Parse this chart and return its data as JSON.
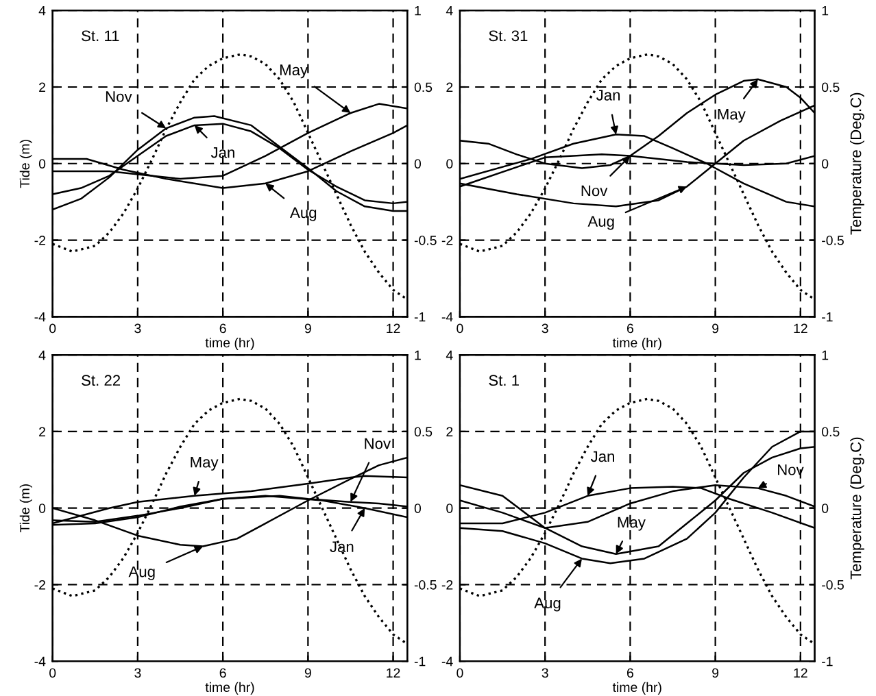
{
  "chart_data": [
    {
      "type": "line",
      "xlabel": "time (hr)",
      "ylabel": "Tide (m)",
      "xlim": [
        0,
        12.5
      ],
      "xticks": [
        0,
        3,
        6,
        9,
        12
      ],
      "ylim": [
        -4,
        4
      ],
      "yticks": [
        -4,
        -2,
        0,
        2,
        4
      ],
      "y2lim": [
        -1,
        1
      ],
      "y2ticks": [
        -1,
        -0.5,
        0,
        0.5,
        1
      ],
      "grid": true,
      "annotations": [
        "St. 11",
        {
          "text": "Nov",
          "x": 4,
          "y": 0.92
        },
        {
          "text": "Jan",
          "x": 5,
          "y": 1.0
        },
        {
          "text": "May",
          "x": 10.5,
          "y": 1.32
        },
        {
          "text": "Aug",
          "x": 7.5,
          "y": -0.52
        }
      ],
      "series": [
        {
          "color": "#000000",
          "line_style": "dotted",
          "x": [
            0,
            0.7,
            1.5,
            2,
            2.5,
            3,
            3.5,
            4,
            4.5,
            5,
            5.5,
            6,
            6.6,
            7,
            7.5,
            8,
            8.5,
            9,
            9.5,
            10,
            10.5,
            11,
            11.5,
            12,
            12.5
          ],
          "values": [
            -2.1,
            -2.3,
            -2.15,
            -1.8,
            -1.3,
            -0.65,
            0.1,
            0.9,
            1.6,
            2.2,
            2.55,
            2.75,
            2.85,
            2.8,
            2.6,
            2.2,
            1.6,
            0.8,
            0,
            -0.8,
            -1.6,
            -2.3,
            -2.85,
            -3.3,
            -3.55
          ]
        },
        {
          "color": "#000000",
          "line_style": "solid",
          "axis": "y2",
          "x": [
            0,
            1,
            2,
            3,
            4,
            5,
            6,
            7,
            8,
            9,
            10,
            11,
            12,
            12.5
          ],
          "values": [
            -0.2,
            -0.16,
            -0.08,
            0.05,
            0.18,
            0.25,
            0.26,
            0.21,
            0.1,
            -0.04,
            -0.15,
            -0.24,
            -0.26,
            -0.25
          ]
        },
        {
          "color": "#000000",
          "line_style": "solid",
          "axis": "y2",
          "x": [
            0,
            2,
            3,
            4.5,
            6,
            7.5,
            9,
            10.5,
            11.5,
            12.5
          ],
          "values": [
            -0.05,
            -0.05,
            -0.07,
            -0.1,
            -0.08,
            0.05,
            0.2,
            0.33,
            0.39,
            0.36
          ]
        },
        {
          "color": "#000000",
          "line_style": "solid",
          "axis": "y2",
          "x": [
            0,
            1.2,
            2.5,
            4,
            6,
            7.5,
            9,
            10.5,
            12,
            12.5
          ],
          "values": [
            0.03,
            0.03,
            -0.04,
            -0.1,
            -0.16,
            -0.13,
            -0.05,
            0.08,
            0.2,
            0.25
          ]
        },
        {
          "color": "#000000",
          "line_style": "solid",
          "axis": "y2",
          "x": [
            0,
            1,
            2,
            3,
            4,
            5,
            5.7,
            7,
            8,
            9,
            10,
            11,
            12,
            12.5
          ],
          "values": [
            -0.3,
            -0.23,
            -0.09,
            0.09,
            0.23,
            0.3,
            0.31,
            0.25,
            0.11,
            -0.03,
            -0.18,
            -0.28,
            -0.31,
            -0.31
          ]
        }
      ]
    },
    {
      "type": "line",
      "xlabel": "time (hr)",
      "y2label": "Temperature (Deg.C)",
      "xlim": [
        0,
        12.5
      ],
      "xticks": [
        0,
        3,
        6,
        9,
        12
      ],
      "ylim": [
        -4,
        4
      ],
      "yticks": [
        -4,
        -2,
        0,
        2,
        4
      ],
      "y2lim": [
        -1,
        1
      ],
      "y2ticks": [
        -1,
        -0.5,
        0,
        0.5,
        1
      ],
      "grid": true,
      "annotations": [
        "St. 31",
        {
          "text": "Jan",
          "x": 5.5,
          "y": 0.76
        },
        {
          "text": "May",
          "x": 10.5,
          "y": 2.2
        },
        {
          "text": "Nov",
          "x": 6,
          "y": 0.2
        },
        {
          "text": "Aug",
          "x": 8,
          "y": -0.6
        }
      ],
      "series": [
        {
          "color": "#000000",
          "line_style": "dotted",
          "x": [
            0,
            0.7,
            1.5,
            2,
            2.5,
            3,
            3.5,
            4,
            4.5,
            5,
            5.5,
            6,
            6.6,
            7,
            7.5,
            8,
            8.5,
            9,
            9.5,
            10,
            10.5,
            11,
            11.5,
            12,
            12.5
          ],
          "values": [
            -2.1,
            -2.3,
            -2.15,
            -1.8,
            -1.3,
            -0.65,
            0.1,
            0.9,
            1.6,
            2.2,
            2.55,
            2.75,
            2.85,
            2.8,
            2.6,
            2.2,
            1.6,
            0.8,
            0,
            -0.8,
            -1.6,
            -2.3,
            -2.85,
            -3.3,
            -3.55
          ]
        },
        {
          "color": "#000000",
          "line_style": "solid",
          "axis": "y2",
          "x": [
            0,
            2.5,
            4,
            5.5,
            6.5,
            7.5,
            8.7,
            10,
            11.5,
            12.5
          ],
          "values": [
            -0.1,
            0.03,
            0.13,
            0.19,
            0.18,
            0.1,
            0,
            -0.13,
            -0.25,
            -0.28
          ]
        },
        {
          "color": "#000000",
          "line_style": "solid",
          "axis": "y2",
          "x": [
            0,
            1,
            2,
            3,
            4.3,
            5.3,
            6,
            7,
            8,
            9,
            10,
            10.5,
            11.5,
            12,
            12.5
          ],
          "values": [
            0.15,
            0.13,
            0.06,
            0,
            -0.03,
            -0.01,
            0.05,
            0.18,
            0.33,
            0.45,
            0.54,
            0.55,
            0.5,
            0.43,
            0.33
          ]
        },
        {
          "color": "#000000",
          "line_style": "solid",
          "axis": "y2",
          "x": [
            0,
            3,
            5,
            6,
            8,
            10,
            11.5,
            12.5
          ],
          "values": [
            -0.15,
            0.04,
            0.06,
            0.05,
            0.01,
            -0.01,
            0,
            0.05
          ]
        },
        {
          "color": "#000000",
          "line_style": "solid",
          "axis": "y2",
          "x": [
            0,
            2,
            4,
            5.5,
            7,
            8,
            9,
            10,
            11.3,
            12.5
          ],
          "values": [
            -0.13,
            -0.2,
            -0.26,
            -0.28,
            -0.24,
            -0.15,
            0,
            0.15,
            0.28,
            0.38
          ]
        }
      ]
    },
    {
      "type": "line",
      "xlabel": "time (hr)",
      "ylabel": "Tide (m)",
      "xlim": [
        0,
        12.5
      ],
      "xticks": [
        0,
        3,
        6,
        9,
        12
      ],
      "ylim": [
        -4,
        4
      ],
      "yticks": [
        -4,
        -2,
        0,
        2,
        4
      ],
      "y2lim": [
        -1,
        1
      ],
      "y2ticks": [
        -1,
        -0.5,
        0,
        0.5,
        1
      ],
      "grid": true,
      "annotations": [
        "St. 22",
        {
          "text": "May",
          "x": 5,
          "y": 0.32
        },
        {
          "text": "Nov",
          "x": 10.5,
          "y": 0.16
        },
        {
          "text": "Jan",
          "x": 11,
          "y": 0
        },
        {
          "text": "Aug",
          "x": 5.3,
          "y": -1.0
        }
      ],
      "series": [
        {
          "color": "#000000",
          "line_style": "dotted",
          "x": [
            0,
            0.7,
            1.5,
            2,
            2.5,
            3,
            3.5,
            4,
            4.5,
            5,
            5.5,
            6,
            6.6,
            7,
            7.5,
            8,
            8.5,
            9,
            9.5,
            10,
            10.5,
            11,
            11.5,
            12,
            12.5
          ],
          "values": [
            -2.1,
            -2.3,
            -2.15,
            -1.8,
            -1.3,
            -0.65,
            0.1,
            0.9,
            1.6,
            2.2,
            2.55,
            2.75,
            2.85,
            2.8,
            2.6,
            2.2,
            1.6,
            0.8,
            0,
            -0.8,
            -1.6,
            -2.3,
            -2.85,
            -3.3,
            -3.55
          ]
        },
        {
          "color": "#000000",
          "line_style": "solid",
          "axis": "y2",
          "x": [
            0,
            1.5,
            3,
            4.5,
            6,
            7.5,
            9.5,
            11,
            12.5
          ],
          "values": [
            -0.11,
            -0.1,
            -0.06,
            0.01,
            0.06,
            0.08,
            0.05,
            0,
            -0.06
          ]
        },
        {
          "color": "#000000",
          "line_style": "solid",
          "axis": "y2",
          "x": [
            0,
            2,
            3,
            5,
            7,
            9,
            10.5,
            11,
            12.5
          ],
          "values": [
            -0.1,
            0,
            0.04,
            0.08,
            0.11,
            0.16,
            0.2,
            0.21,
            0.2
          ]
        },
        {
          "color": "#000000",
          "line_style": "solid",
          "axis": "y2",
          "x": [
            0,
            1.5,
            3,
            4.5,
            5.3,
            6.5,
            7.5,
            9,
            10.5,
            11.5,
            12.5
          ],
          "values": [
            0,
            -0.08,
            -0.18,
            -0.24,
            -0.25,
            -0.2,
            -0.1,
            0.05,
            0.19,
            0.28,
            0.33
          ]
        },
        {
          "color": "#000000",
          "line_style": "solid",
          "axis": "y2",
          "x": [
            0,
            1.5,
            3,
            4.5,
            6,
            8,
            9,
            10.5,
            11.5,
            12.5
          ],
          "values": [
            -0.08,
            -0.09,
            -0.05,
            0,
            0.06,
            0.08,
            0.06,
            0.04,
            0.03,
            0.01
          ]
        }
      ]
    },
    {
      "type": "line",
      "xlabel": "time (hr)",
      "y2label": "Temperature (Deg.C)",
      "xlim": [
        0,
        12.5
      ],
      "xticks": [
        0,
        3,
        6,
        9,
        12
      ],
      "ylim": [
        -4,
        4
      ],
      "yticks": [
        -4,
        -2,
        0,
        2,
        4
      ],
      "y2lim": [
        -1,
        1
      ],
      "y2ticks": [
        -1,
        -0.5,
        0,
        0.5,
        1
      ],
      "grid": true,
      "annotations": [
        "St. 1",
        {
          "text": "Jan",
          "x": 4.5,
          "y": 0.32
        },
        {
          "text": "Nov",
          "x": 10.5,
          "y": 0.52
        },
        {
          "text": "May",
          "x": 5.5,
          "y": -1.2
        },
        {
          "text": "Aug",
          "x": 4.3,
          "y": -1.32
        }
      ],
      "series": [
        {
          "color": "#000000",
          "line_style": "dotted",
          "x": [
            0,
            0.7,
            1.5,
            2,
            2.5,
            3,
            3.5,
            4,
            4.5,
            5,
            5.5,
            6,
            6.6,
            7,
            7.5,
            8,
            8.5,
            9,
            9.5,
            10,
            10.5,
            11,
            11.5,
            12,
            12.5
          ],
          "values": [
            -2.1,
            -2.3,
            -2.15,
            -1.8,
            -1.3,
            -0.65,
            0.1,
            0.9,
            1.6,
            2.2,
            2.55,
            2.75,
            2.85,
            2.8,
            2.6,
            2.2,
            1.6,
            0.8,
            0,
            -0.8,
            -1.6,
            -2.3,
            -2.85,
            -3.3,
            -3.55
          ]
        },
        {
          "color": "#000000",
          "line_style": "solid",
          "axis": "y2",
          "x": [
            0,
            1.5,
            3,
            4.5,
            6,
            7.5,
            8.5,
            9.5,
            11,
            12.5
          ],
          "values": [
            -0.1,
            -0.1,
            -0.03,
            0.08,
            0.13,
            0.14,
            0.13,
            0.06,
            -0.03,
            -0.13
          ]
        },
        {
          "color": "#000000",
          "line_style": "solid",
          "axis": "y2",
          "x": [
            0,
            1.5,
            3,
            4.3,
            5.5,
            7,
            8,
            9,
            10,
            11,
            12,
            12.5
          ],
          "values": [
            0.15,
            0.08,
            -0.13,
            -0.25,
            -0.3,
            -0.25,
            -0.1,
            0.05,
            0.23,
            0.33,
            0.39,
            0.4
          ]
        },
        {
          "color": "#000000",
          "line_style": "solid",
          "axis": "y2",
          "x": [
            0,
            1.5,
            3,
            4.3,
            5.3,
            6.5,
            8,
            9,
            10,
            11,
            12,
            12.5
          ],
          "values": [
            -0.13,
            -0.15,
            -0.23,
            -0.33,
            -0.36,
            -0.33,
            -0.2,
            -0.03,
            0.2,
            0.4,
            0.5,
            0.5
          ]
        },
        {
          "color": "#000000",
          "line_style": "solid",
          "axis": "y2",
          "x": [
            0,
            1.5,
            3,
            4.5,
            6,
            7.5,
            9,
            10.5,
            11.5,
            12.5
          ],
          "values": [
            0.05,
            -0.03,
            -0.13,
            -0.09,
            0.03,
            0.11,
            0.15,
            0.13,
            0.08,
            0.01
          ]
        }
      ]
    }
  ]
}
